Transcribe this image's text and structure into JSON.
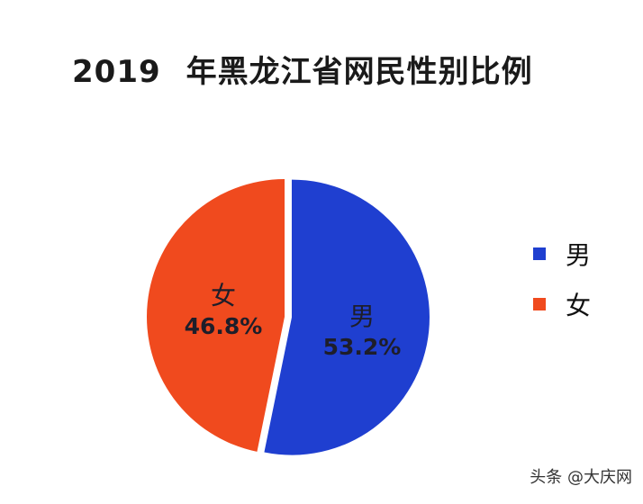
{
  "title": {
    "year": "2019",
    "text": "年黑龙江省网民性别比例"
  },
  "chart_data": {
    "type": "pie",
    "title": "2019 年黑龙江省网民性别比例",
    "categories": [
      "男",
      "女"
    ],
    "values": [
      53.2,
      46.8
    ],
    "labels": [
      "53.2%",
      "46.8%"
    ],
    "colors": [
      "#1f3fd0",
      "#f04a1e"
    ],
    "legend_position": "right",
    "exploded": [
      "男"
    ]
  },
  "slices": [
    {
      "category": "男",
      "percent": "53.2%",
      "color": "#1f3fd0"
    },
    {
      "category": "女",
      "percent": "46.8%",
      "color": "#f04a1e"
    }
  ],
  "legend": [
    {
      "label": "男",
      "color": "#1f3fd0"
    },
    {
      "label": "女",
      "color": "#f04a1e"
    }
  ],
  "watermark": "头条 @大庆网"
}
